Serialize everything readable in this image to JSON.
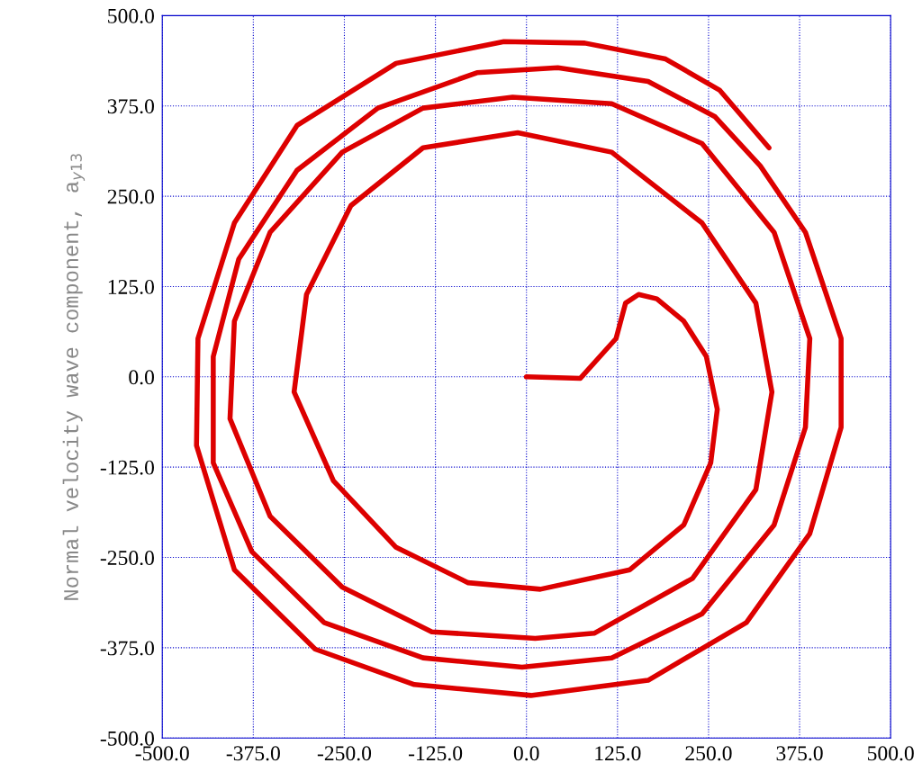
{
  "chart_data": {
    "type": "line",
    "ylabel": "Normal velocity wave component, a$_{y13}$",
    "xlim": [
      -500,
      500
    ],
    "ylim": [
      -500,
      500
    ],
    "xticks": [
      {
        "value": -500,
        "label": "-500.0"
      },
      {
        "value": -375,
        "label": "-375.0"
      },
      {
        "value": -250,
        "label": "-250.0"
      },
      {
        "value": -125,
        "label": "-125.0"
      },
      {
        "value": 0,
        "label": "0.0"
      },
      {
        "value": 125,
        "label": "125.0"
      },
      {
        "value": 250,
        "label": "250.0"
      },
      {
        "value": 375,
        "label": "375.0"
      },
      {
        "value": 500,
        "label": "500.0"
      }
    ],
    "yticks": [
      {
        "value": -500,
        "label": "-500.0"
      },
      {
        "value": -375,
        "label": "-375.0"
      },
      {
        "value": -250,
        "label": "-250.0"
      },
      {
        "value": -125,
        "label": "-125.0"
      },
      {
        "value": 0,
        "label": "0.0"
      },
      {
        "value": 125,
        "label": "125.0"
      },
      {
        "value": 250,
        "label": "250.0"
      },
      {
        "value": 375,
        "label": "375.0"
      },
      {
        "value": 500,
        "label": "500.0"
      }
    ],
    "grid": true,
    "marker": "none",
    "line_style": "solid",
    "series": [
      {
        "color": "#dd0000",
        "x": [
          0,
          74,
          123,
          136,
          154,
          179,
          216,
          247,
          262,
          253,
          216,
          142,
          19,
          -80,
          -179,
          -265,
          -319,
          -302,
          -241,
          -142,
          -12,
          117,
          241,
          315,
          337,
          315,
          228,
          93,
          12,
          -130,
          -253,
          -352,
          -407,
          -401,
          -352,
          -253,
          -142,
          -19,
          117,
          241,
          340,
          389,
          383,
          340,
          241,
          117,
          -6,
          -142,
          -278,
          -377,
          -430,
          -430,
          -395,
          -315,
          -204,
          -68,
          43,
          167,
          259,
          321,
          383,
          432,
          432,
          389,
          302,
          167,
          6,
          -154,
          -290,
          -401,
          -453,
          -451,
          -401,
          -315,
          -179,
          -31,
          80,
          191,
          265,
          333
        ],
        "values": [
          0,
          -2,
          53,
          102,
          114,
          108,
          77,
          28,
          -45,
          -119,
          -205,
          -267,
          -294,
          -285,
          -236,
          -144,
          -21,
          114,
          237,
          317,
          338,
          311,
          213,
          102,
          -21,
          -156,
          -279,
          -355,
          -362,
          -353,
          -291,
          -193,
          -58,
          77,
          200,
          311,
          372,
          387,
          378,
          323,
          200,
          53,
          -70,
          -205,
          -328,
          -389,
          -402,
          -389,
          -340,
          -242,
          -119,
          28,
          163,
          286,
          372,
          421,
          428,
          409,
          360,
          292,
          200,
          53,
          -70,
          -217,
          -340,
          -420,
          -441,
          -426,
          -377,
          -267,
          -95,
          53,
          213,
          348,
          434,
          464,
          462,
          440,
          397,
          317
        ]
      }
    ]
  }
}
